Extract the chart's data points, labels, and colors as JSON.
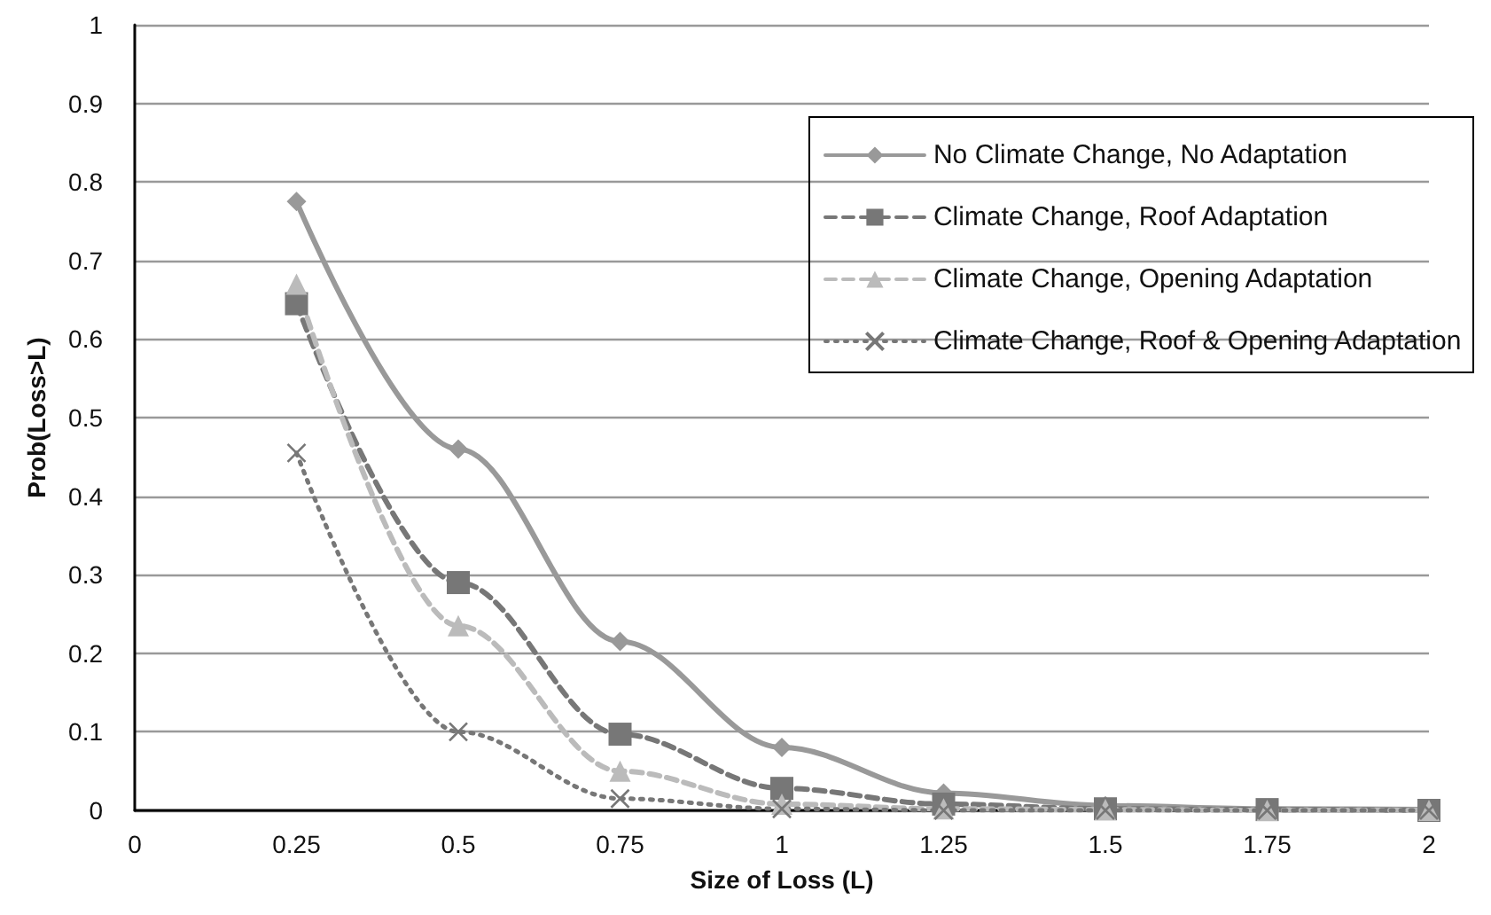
{
  "chart_data": {
    "type": "line",
    "xlabel": "Size of Loss (L)",
    "ylabel": "Prob(Loss>L)",
    "x": [
      0.25,
      0.5,
      0.75,
      1,
      1.25,
      1.5,
      1.75,
      2
    ],
    "series": [
      {
        "name": "No Climate Change, No Adaptation",
        "color": "#999999",
        "marker": "diamond",
        "line_style": "solid",
        "values": [
          0.775,
          0.46,
          0.215,
          0.08,
          0.022,
          0.006,
          0.002,
          0.001
        ]
      },
      {
        "name": "Climate Change, Roof Adaptation",
        "color": "#777777",
        "marker": "square",
        "line_style": "dashed",
        "values": [
          0.645,
          0.29,
          0.097,
          0.028,
          0.008,
          0.002,
          0.001,
          0
        ]
      },
      {
        "name": "Climate Change, Opening Adaptation",
        "color": "#bbbbbb",
        "marker": "triangle",
        "line_style": "dashed",
        "values": [
          0.67,
          0.235,
          0.05,
          0.008,
          0.002,
          0.001,
          0,
          0
        ]
      },
      {
        "name": "Climate Change, Roof & Opening Adaptation",
        "color": "#777777",
        "marker": "cross",
        "line_style": "dotted",
        "values": [
          0.455,
          0.1,
          0.015,
          0.002,
          0,
          0,
          0,
          0
        ]
      }
    ],
    "xlim": [
      0,
      2
    ],
    "xticks": [
      0,
      0.25,
      0.5,
      0.75,
      1,
      1.25,
      1.5,
      1.75,
      2
    ],
    "ylim": [
      0,
      1
    ],
    "yticks": [
      0,
      0.1,
      0.2,
      0.3,
      0.4,
      0.5,
      0.6,
      0.7,
      0.8,
      0.9,
      1
    ],
    "grid": "y",
    "legend": "top right"
  }
}
